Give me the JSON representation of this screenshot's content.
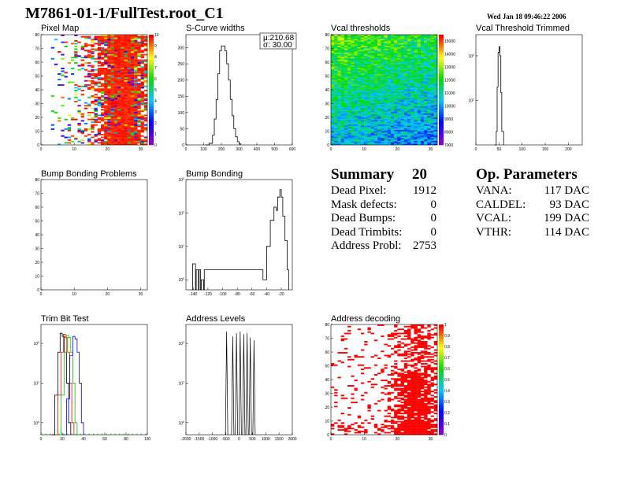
{
  "header": {
    "title": "M7861-01-1/FullTest.root_C1",
    "datetime": "Wed Jan 18 09:46:22 2006"
  },
  "panels": {
    "pixel_map": {
      "title": "Pixel Map"
    },
    "scurve": {
      "title": "S-Curve widths",
      "mu": "μ:210.68",
      "sigma": "σ: 30.00"
    },
    "vcal_thresholds": {
      "title": "Vcal thresholds"
    },
    "vcal_trimmed": {
      "title": "Vcal Threshold Trimmed"
    },
    "bump_problems": {
      "title": "Bump Bonding Problems"
    },
    "bump_bonding": {
      "title": "Bump Bonding"
    },
    "trim_bit": {
      "title": "Trim Bit Test"
    },
    "address_levels": {
      "title": "Address Levels"
    },
    "address_decoding": {
      "title": "Address decoding"
    }
  },
  "summary": {
    "title": "Summary",
    "count": "20",
    "rows": [
      {
        "label": "Dead Pixel:",
        "value": "1912"
      },
      {
        "label": "Mask defects:",
        "value": "0"
      },
      {
        "label": "Dead Bumps:",
        "value": "0"
      },
      {
        "label": "Dead Trimbits:",
        "value": "0"
      },
      {
        "label": "Address Probl:",
        "value": "2753"
      }
    ]
  },
  "op_params": {
    "title": "Op. Parameters",
    "rows": [
      {
        "label": "VANA:",
        "value": "117 DAC"
      },
      {
        "label": "CALDEL:",
        "value": "93 DAC"
      },
      {
        "label": "VCAL:",
        "value": "199 DAC"
      },
      {
        "label": "VTHR:",
        "value": "114 DAC"
      }
    ]
  },
  "chart_data": [
    {
      "id": "pixel_map",
      "type": "heatmap",
      "xlim": [
        0,
        32
      ],
      "ylim": [
        0,
        80
      ],
      "xticks": [
        0,
        10,
        20,
        30
      ],
      "yticks": [
        0,
        10,
        20,
        30,
        40,
        50,
        60,
        70,
        80
      ],
      "zticks": [
        0,
        1,
        2,
        3,
        4,
        5,
        6,
        7,
        8,
        9,
        10
      ],
      "zlim": [
        0,
        10
      ]
    },
    {
      "id": "scurve",
      "type": "line",
      "xlim": [
        0,
        600
      ],
      "ylim": [
        0,
        340
      ],
      "xticks": [
        0,
        100,
        200,
        300,
        400,
        500,
        600
      ],
      "yticks": [
        0,
        50,
        100,
        150,
        200,
        250,
        300
      ],
      "x": [
        110,
        130,
        150,
        160,
        170,
        180,
        190,
        200,
        210,
        220,
        230,
        240,
        250,
        260,
        270,
        280,
        290,
        300,
        310
      ],
      "y": [
        0,
        5,
        30,
        80,
        140,
        220,
        290,
        305,
        305,
        290,
        250,
        200,
        140,
        90,
        50,
        25,
        10,
        3,
        0
      ]
    },
    {
      "id": "vcal_thresholds",
      "type": "heatmap",
      "xlim": [
        0,
        32
      ],
      "ylim": [
        0,
        80
      ],
      "xticks": [
        0,
        10,
        20,
        30
      ],
      "yticks": [
        0,
        10,
        20,
        30,
        40,
        50,
        60,
        70,
        80
      ],
      "zticks": [
        7000,
        8000,
        9000,
        10000,
        11000,
        12000,
        13000,
        14000,
        15000
      ],
      "zlim": [
        7000,
        15500
      ]
    },
    {
      "id": "vcal_trimmed",
      "type": "line",
      "ylog": true,
      "xlim": [
        0,
        230
      ],
      "ylim": [
        1,
        300
      ],
      "xticks": [
        0,
        50,
        100,
        150,
        200,
        250
      ],
      "yticks": [
        10,
        100
      ],
      "x": [
        40,
        44,
        46,
        48,
        50,
        52,
        54,
        56,
        60
      ],
      "y": [
        1,
        2,
        20,
        120,
        160,
        100,
        15,
        2,
        1
      ]
    },
    {
      "id": "bump_problems",
      "type": "heatmap",
      "xlim": [
        0,
        32
      ],
      "ylim": [
        0,
        80
      ],
      "xticks": [
        0,
        10,
        20,
        30
      ],
      "yticks": [
        0,
        10,
        20,
        30,
        40,
        50,
        60,
        70,
        80
      ]
    },
    {
      "id": "bump_bonding",
      "type": "line",
      "ylog": true,
      "xlim": [
        -150,
        -5
      ],
      "ylim": [
        0.5,
        1000
      ],
      "xticks": [
        -140,
        -120,
        -100,
        -80,
        -60,
        -40,
        -20
      ],
      "yticks": [
        1,
        10,
        100,
        1000
      ],
      "x": [
        -142,
        -141,
        -137,
        -136,
        -133,
        -132,
        -130,
        -129,
        -126,
        -125,
        -45,
        -40,
        -35,
        -30,
        -27,
        -25,
        -22,
        -20,
        -18,
        -15,
        -12,
        -10
      ],
      "y": [
        0.5,
        3,
        0.5,
        2,
        0.5,
        2,
        0.5,
        1,
        0.5,
        2,
        1,
        10,
        60,
        150,
        120,
        300,
        500,
        300,
        80,
        15,
        2,
        0.5
      ]
    },
    {
      "id": "trim_bit",
      "type": "line",
      "ylog": true,
      "xlim": [
        0,
        100
      ],
      "ylim": [
        0.5,
        300
      ],
      "xticks": [
        0,
        20,
        40,
        60,
        80,
        100
      ],
      "yticks": [
        1,
        10,
        100
      ],
      "series": [
        {
          "color": "#000000",
          "x": [
            10,
            13,
            16,
            18,
            20,
            22,
            24,
            26,
            28
          ],
          "y": [
            0.5,
            5,
            60,
            180,
            150,
            60,
            10,
            1,
            0.5
          ]
        },
        {
          "color": "#ff0000",
          "x": [
            13,
            16,
            19,
            21,
            23,
            25,
            27,
            29,
            31
          ],
          "y": [
            0.5,
            5,
            60,
            170,
            140,
            60,
            10,
            1,
            0.5
          ]
        },
        {
          "color": "#00cc00",
          "x": [
            16,
            19,
            22,
            24,
            26,
            28,
            30,
            32,
            34
          ],
          "y": [
            0.5,
            5,
            60,
            160,
            140,
            60,
            10,
            1,
            0.5
          ]
        },
        {
          "color": "#0000ff",
          "x": [
            20,
            24,
            27,
            30,
            32,
            34,
            36,
            38,
            40
          ],
          "y": [
            0.5,
            4,
            50,
            150,
            130,
            60,
            10,
            1,
            0.5
          ]
        }
      ]
    },
    {
      "id": "address_levels",
      "type": "line",
      "ylog": true,
      "xlim": [
        -2000,
        2000
      ],
      "ylim": [
        0.5,
        300
      ],
      "xticks": [
        -2000,
        -1500,
        -1000,
        -500,
        0,
        500,
        1000,
        1500,
        2000
      ],
      "yticks": [
        1,
        10,
        100
      ],
      "peaks": [
        -470,
        -240,
        -100,
        40,
        175,
        300,
        420,
        560
      ],
      "peak_values": [
        200,
        150,
        180,
        200,
        170,
        180,
        140,
        120
      ]
    },
    {
      "id": "address_decoding",
      "type": "heatmap",
      "xlim": [
        0,
        32
      ],
      "ylim": [
        0,
        80
      ],
      "xticks": [
        0,
        10,
        20,
        30
      ],
      "yticks": [
        0,
        10,
        20,
        30,
        40,
        50,
        60,
        70,
        80
      ],
      "zticks": [
        0,
        0.1,
        0.2,
        0.3,
        0.4,
        0.5,
        0.6,
        0.7,
        0.8,
        0.9,
        1
      ],
      "zlim": [
        0,
        1
      ]
    }
  ]
}
